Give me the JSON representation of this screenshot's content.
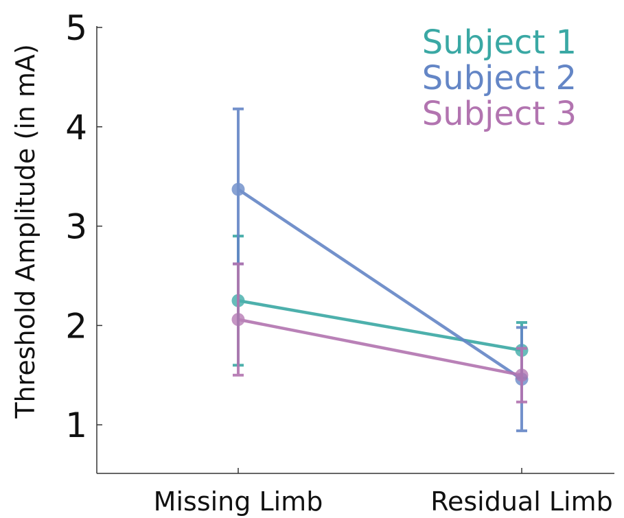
{
  "chart_data": {
    "type": "line",
    "title": "",
    "xlabel": "",
    "ylabel": "Threshold Amplitude (in mA)",
    "categories": [
      "Missing Limb",
      "Residual Limb"
    ],
    "ylim": [
      0.5,
      5
    ],
    "yticks": [
      1,
      2,
      3,
      4,
      5
    ],
    "grid": false,
    "legend_position": "top-right",
    "series": [
      {
        "name": "Subject 1",
        "color": "#3aa8a4",
        "values": [
          2.25,
          1.75
        ],
        "error_low": [
          1.6,
          1.47
        ],
        "error_high": [
          2.9,
          2.03
        ]
      },
      {
        "name": "Subject 2",
        "color": "#6486c6",
        "values": [
          3.37,
          1.46
        ],
        "error_low": [
          2.62,
          0.94
        ],
        "error_high": [
          4.18,
          1.98
        ]
      },
      {
        "name": "Subject 3",
        "color": "#b274b0",
        "values": [
          2.06,
          1.5
        ],
        "error_low": [
          1.5,
          1.23
        ],
        "error_high": [
          2.62,
          1.77
        ]
      }
    ]
  }
}
